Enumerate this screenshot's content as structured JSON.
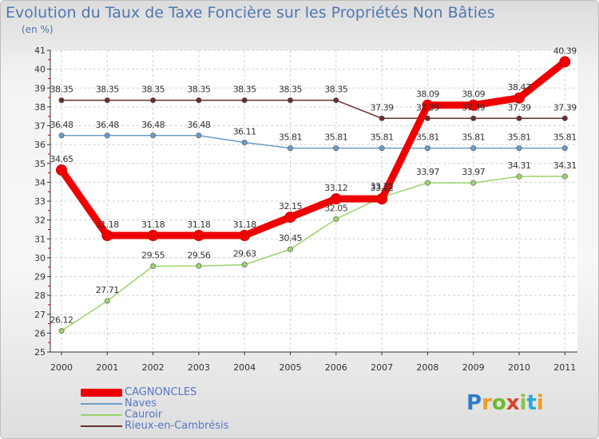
{
  "title": "Evolution du Taux de Taxe Foncière sur les Propriétés Non Bâties",
  "unit_label": "(en %)",
  "logo": {
    "letters": [
      "P",
      "r",
      "o",
      "x",
      "i",
      "t",
      "i"
    ],
    "colors": [
      "#2f7dc6",
      "#f39a1f",
      "#6fba2c",
      "#d9412f",
      "#8bc34a",
      "#29a9d6",
      "#f39a1f"
    ]
  },
  "chart_data": {
    "type": "line",
    "title": "Evolution du Taux de Taxe Foncière sur les Propriétés Non Bâties",
    "ylabel": "(en %)",
    "xlabel": "",
    "x": [
      "2000",
      "2001",
      "2002",
      "2003",
      "2004",
      "2005",
      "2006",
      "2007",
      "2008",
      "2009",
      "2010",
      "2011"
    ],
    "ylim": [
      25,
      41
    ],
    "yticks": [
      "25",
      "26",
      "27",
      "28",
      "29",
      "30",
      "31",
      "32",
      "33",
      "34",
      "35",
      "36",
      "37",
      "38",
      "39",
      "40",
      "41"
    ],
    "grid": true,
    "series": [
      {
        "name": "CAGNONCLES",
        "color": "#ee0000",
        "bold": true,
        "values": [
          34.65,
          31.18,
          31.18,
          31.18,
          31.18,
          32.15,
          33.12,
          33.12,
          38.09,
          38.09,
          38.47,
          40.39
        ],
        "labels": [
          "34.65",
          "31.18",
          "31.18",
          "31.18",
          "31.18",
          "32.15",
          "33.12",
          "33.12",
          "38.09",
          "38.09",
          "38.47",
          "40.39"
        ]
      },
      {
        "name": "Naves",
        "color": "#6b9dc8",
        "values": [
          36.48,
          36.48,
          36.48,
          36.48,
          36.11,
          35.81,
          35.81,
          35.81,
          35.81,
          35.81,
          35.81,
          35.81
        ],
        "labels": [
          "36.48",
          "36.48",
          "36.48",
          "36.48",
          "36.11",
          "35.81",
          "35.81",
          "35.81",
          "35.81",
          "35.81",
          "35.81",
          "35.81"
        ]
      },
      {
        "name": "Cauroir",
        "color": "#9bd46a",
        "values": [
          26.12,
          27.71,
          29.55,
          29.56,
          29.63,
          30.45,
          32.05,
          33.21,
          33.97,
          33.97,
          34.31,
          34.31
        ],
        "labels": [
          "26.12",
          "27.71",
          "29.55",
          "29.56",
          "29.63",
          "30.45",
          "32.05",
          "33.21",
          "33.97",
          "33.97",
          "34.31",
          "34.31"
        ]
      },
      {
        "name": "Rieux-en-Cambrésis",
        "color": "#6a2e2e",
        "values": [
          38.35,
          38.35,
          38.35,
          38.35,
          38.35,
          38.35,
          38.35,
          37.39,
          37.39,
          37.39,
          37.39,
          37.39
        ],
        "labels": [
          "38.35",
          "38.35",
          "38.35",
          "38.35",
          "38.35",
          "38.35",
          "38.35",
          "37.39",
          "37.39",
          "37.39",
          "37.39",
          "37.39"
        ]
      }
    ]
  }
}
